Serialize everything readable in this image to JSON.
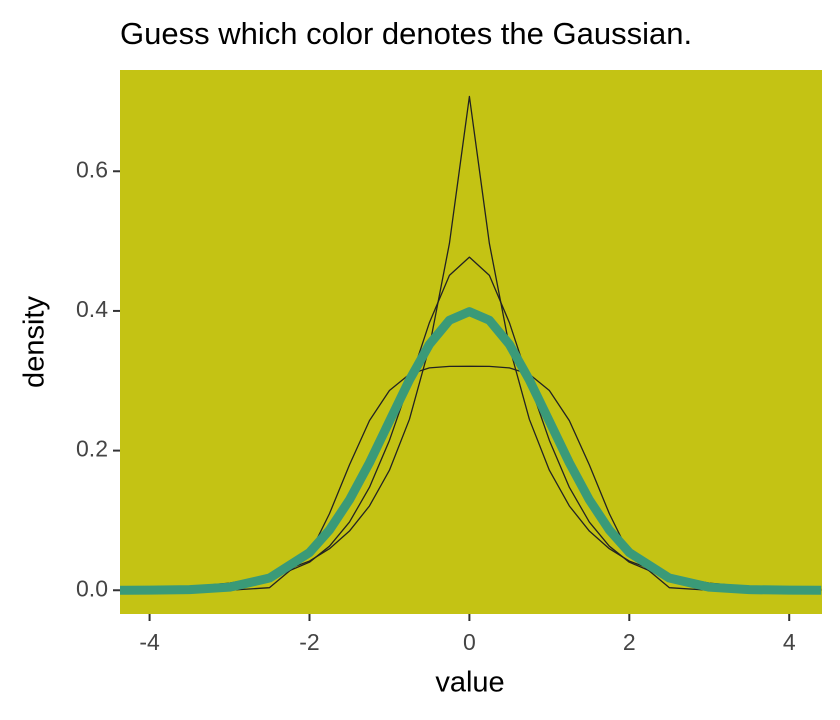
{
  "chart_data": {
    "type": "line",
    "title": "Guess which color denotes the Gaussian.",
    "x_label": "value",
    "y_label": "density",
    "background": "#c4c314",
    "x": [
      -4.4,
      -4,
      -3.5,
      -3,
      -2.5,
      -2,
      -1.75,
      -1.5,
      -1.25,
      -1,
      -0.75,
      -0.5,
      -0.25,
      0,
      0.25,
      0.5,
      0.75,
      1,
      1.25,
      1.5,
      1.75,
      2,
      2.5,
      3,
      3.5,
      4,
      4.4
    ],
    "series": [
      {
        "color": "#222222",
        "line_width": 1.3,
        "values": [
          0.0014,
          0.0025,
          0.005,
          0.0102,
          0.0206,
          0.0418,
          0.0595,
          0.0848,
          0.1207,
          0.1719,
          0.2448,
          0.3487,
          0.4965,
          0.7071,
          0.4965,
          0.3487,
          0.2448,
          0.1719,
          0.1207,
          0.0848,
          0.0595,
          0.0418,
          0.0206,
          0.0102,
          0.005,
          0.0025,
          0.0014
        ]
      },
      {
        "color": "#222222",
        "line_width": 1.3,
        "values": [
          0.0004,
          0.0009,
          0.0024,
          0.0062,
          0.0159,
          0.0402,
          0.0631,
          0.0976,
          0.1474,
          0.2147,
          0.2969,
          0.3833,
          0.4509,
          0.477,
          0.4509,
          0.3833,
          0.2969,
          0.2147,
          0.1474,
          0.0976,
          0.0631,
          0.0402,
          0.0159,
          0.0062,
          0.0024,
          0.0009,
          0.0004
        ]
      },
      {
        "color": "#222222",
        "line_width": 1.3,
        "values": [
          0,
          0,
          0,
          0,
          0.0037,
          0.0516,
          0.1097,
          0.1796,
          0.2429,
          0.2861,
          0.3093,
          0.3184,
          0.3206,
          0.3207,
          0.3206,
          0.3184,
          0.3093,
          0.2861,
          0.2429,
          0.1796,
          0.1097,
          0.0516,
          0.0037,
          0,
          0,
          0,
          0
        ]
      },
      {
        "color": "#3a9a78",
        "line_width": 9,
        "values": [
          0,
          0.0001,
          0.0009,
          0.0044,
          0.0175,
          0.054,
          0.0863,
          0.1295,
          0.1826,
          0.242,
          0.3011,
          0.3521,
          0.3867,
          0.399,
          0.3867,
          0.3521,
          0.3011,
          0.242,
          0.1826,
          0.1295,
          0.0863,
          0.054,
          0.0175,
          0.0044,
          0.0009,
          0.0001,
          0
        ]
      }
    ],
    "xlim": [
      -4.37,
      4.41
    ],
    "xticks": [
      -4,
      -2,
      0,
      2,
      4
    ],
    "ylim": [
      -0.034,
      0.745
    ],
    "yticks": [
      {
        "value": 0,
        "label": "0.0"
      },
      {
        "value": 0.2,
        "label": "0.2"
      },
      {
        "value": 0.4,
        "label": "0.4"
      },
      {
        "value": 0.6,
        "label": "0.6"
      }
    ]
  }
}
